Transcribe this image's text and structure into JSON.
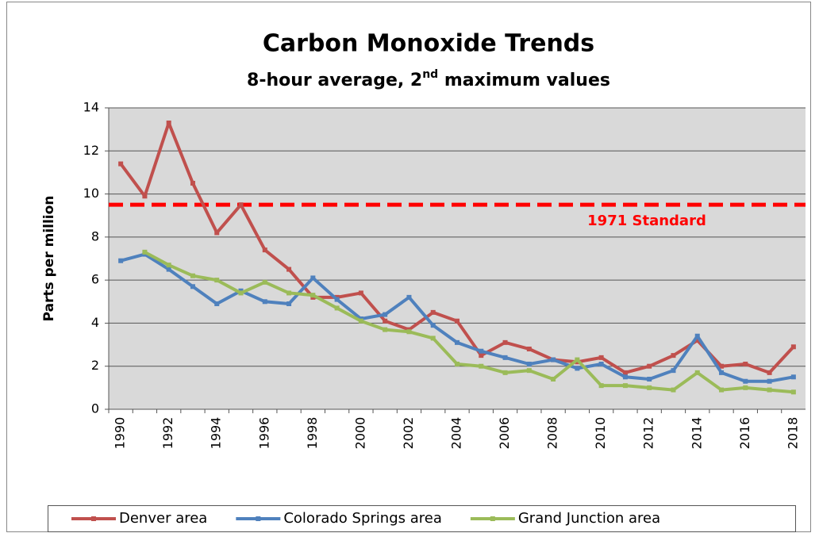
{
  "chart_data": {
    "type": "line",
    "title": "Carbon Monoxide Trends",
    "subtitle": [
      "8-hour average, 2",
      "nd",
      " maximum values"
    ],
    "y_label": "Parts per million",
    "categories": [
      "1990",
      null,
      "1992",
      null,
      "1994",
      null,
      "1996",
      null,
      "1998",
      null,
      "2000",
      null,
      "2002",
      null,
      "2004",
      null,
      "2006",
      null,
      "2008",
      null,
      "2010",
      null,
      "2012",
      null,
      "2014",
      null,
      "2016",
      null,
      "2018"
    ],
    "series": [
      {
        "name": "Denver area",
        "color": "#c0504d",
        "values": [
          11.4,
          9.9,
          13.3,
          10.5,
          8.2,
          9.5,
          7.4,
          6.5,
          5.2,
          5.2,
          5.4,
          4.1,
          3.7,
          4.5,
          4.1,
          2.5,
          3.1,
          2.8,
          2.3,
          2.2,
          2.4,
          1.7,
          2.0,
          2.5,
          3.2,
          2.0,
          2.1,
          1.7,
          2.9
        ]
      },
      {
        "name": "Colorado Springs area",
        "color": "#4f81bd",
        "values": [
          6.9,
          7.2,
          6.5,
          5.7,
          4.9,
          5.5,
          5.0,
          4.9,
          6.1,
          5.1,
          4.2,
          4.4,
          5.2,
          3.9,
          3.1,
          2.7,
          2.4,
          2.1,
          2.3,
          1.9,
          2.1,
          1.5,
          1.4,
          1.8,
          3.4,
          1.7,
          1.3,
          1.3,
          1.5
        ]
      },
      {
        "name": "Grand Junction area",
        "color": "#9bbb59",
        "values": [
          null,
          7.3,
          6.7,
          6.2,
          6.0,
          5.4,
          5.9,
          5.4,
          5.3,
          4.7,
          4.1,
          3.7,
          3.6,
          3.3,
          2.1,
          2.0,
          1.7,
          1.8,
          1.4,
          2.3,
          1.1,
          1.1,
          1.0,
          0.9,
          1.7,
          0.9,
          1.0,
          0.9,
          0.8
        ]
      }
    ],
    "reference_line": {
      "value": 9.5,
      "label": "1971 Standard",
      "color": "#ff0000"
    },
    "ylim": [
      0,
      14
    ],
    "yticks": [
      0,
      2,
      4,
      6,
      8,
      10,
      12,
      14
    ],
    "grid": true,
    "legend": "bottom"
  }
}
